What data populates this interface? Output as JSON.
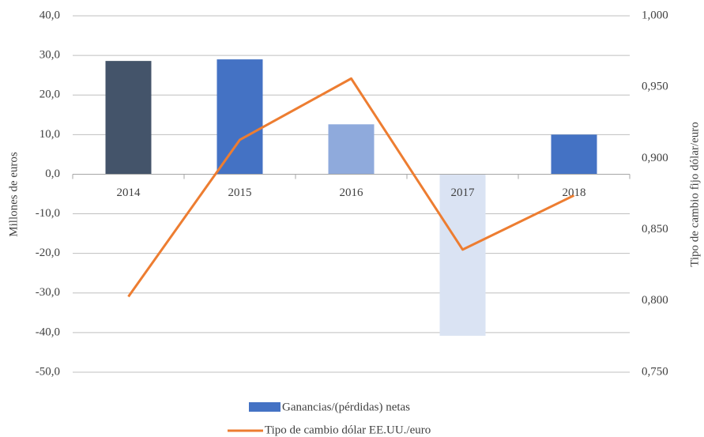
{
  "chart_data": {
    "type": "bar-line",
    "categories": [
      "2014",
      "2015",
      "2016",
      "2017",
      "2018"
    ],
    "series": [
      {
        "name": "Ganancias/(pérdidas) netas",
        "type": "bar",
        "color": "#4472c4",
        "colors": [
          "#44546a",
          "#4472c4",
          "#8faadc",
          "#dae3f3",
          "#4472c4"
        ],
        "values": [
          28.6,
          29.0,
          12.6,
          -40.8,
          10.0
        ]
      },
      {
        "name": "Tipo de cambio dólar EE.UU./euro",
        "type": "line",
        "color": "#ed7d31",
        "axis": "y2",
        "values": [
          0.803,
          0.913,
          0.956,
          0.836,
          0.874
        ]
      }
    ],
    "ylabel": "Millones  de euros",
    "y2label": "Tipo de cambio fijo dólar/euro",
    "ylim": [
      -50,
      40
    ],
    "yticks": [
      {
        "value": -50,
        "label": "-50,0"
      },
      {
        "value": -40,
        "label": "-40,0"
      },
      {
        "value": -30,
        "label": "-30,0"
      },
      {
        "value": -20,
        "label": "-20,0"
      },
      {
        "value": -10,
        "label": "-10,0"
      },
      {
        "value": 0,
        "label": "0,0"
      },
      {
        "value": 10,
        "label": "10,0"
      },
      {
        "value": 20,
        "label": "20,0"
      },
      {
        "value": 30,
        "label": "30,0"
      },
      {
        "value": 40,
        "label": "40,0"
      }
    ],
    "y2lim": [
      0.75,
      1.0
    ],
    "y2ticks": [
      {
        "value": 0.75,
        "label": "0,750"
      },
      {
        "value": 0.8,
        "label": "0,800"
      },
      {
        "value": 0.85,
        "label": "0,850"
      },
      {
        "value": 0.9,
        "label": "0,900"
      },
      {
        "value": 0.95,
        "label": "0,950"
      },
      {
        "value": 1.0,
        "label": "1,000"
      }
    ],
    "grid": true
  }
}
